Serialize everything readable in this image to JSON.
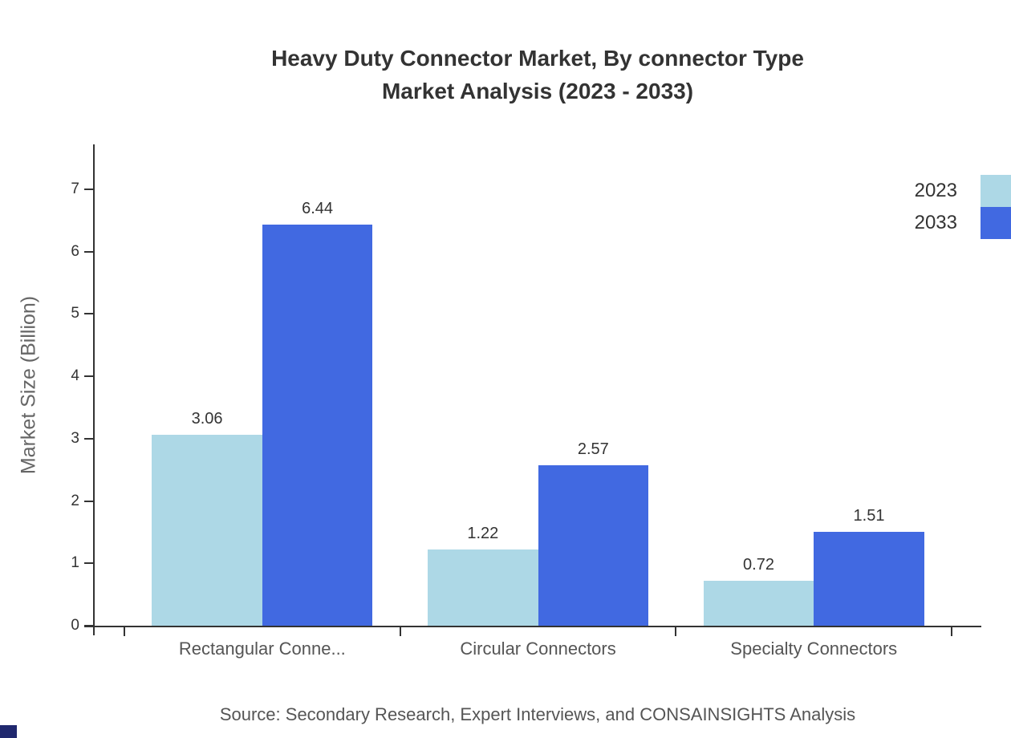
{
  "title": {
    "line1": "Heavy Duty Connector Market, By connector Type",
    "line2": "Market Analysis (2023 - 2033)"
  },
  "source": "Source: Secondary Research, Expert Interviews, and CONSAINSIGHTS Analysis",
  "colors": {
    "series_2023": "#ADD8E6",
    "series_2033": "#4169E1",
    "axis": "#333333",
    "text_primary": "#333333",
    "text_secondary": "#555555",
    "logo_fragment": "#20286E"
  },
  "chart_data": {
    "type": "bar",
    "title": "Heavy Duty Connector Market, By connector Type - Market Analysis (2023 - 2033)",
    "categories": [
      "Rectangular Conne...",
      "Circular Connectors",
      "Specialty Connectors"
    ],
    "series": [
      {
        "name": "2023",
        "color": "#ADD8E6",
        "values": [
          3.06,
          1.22,
          0.72
        ]
      },
      {
        "name": "2033",
        "color": "#4169E1",
        "values": [
          6.44,
          2.57,
          1.51
        ]
      }
    ],
    "xlabel": "",
    "ylabel": "Market Size (Billion)",
    "ylim": [
      0,
      7
    ],
    "yticks": [
      0,
      1,
      2,
      3,
      4,
      5,
      6,
      7
    ],
    "grid": false,
    "legend_position": "top-right",
    "value_labels": true
  }
}
